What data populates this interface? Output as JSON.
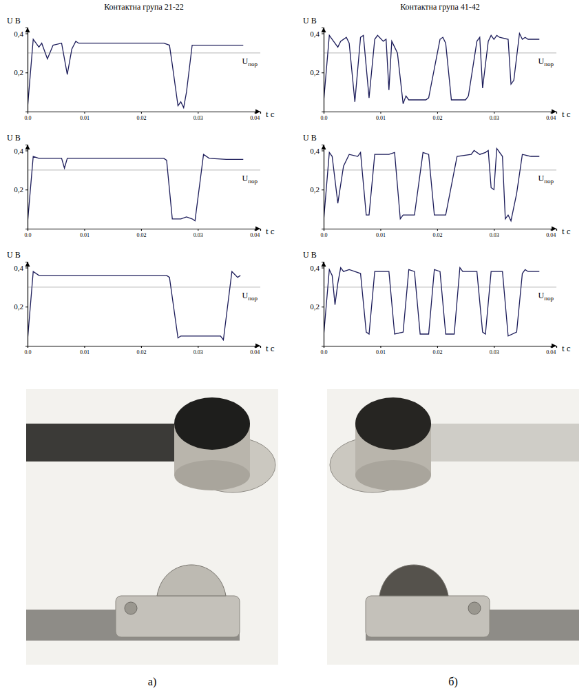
{
  "chart_data": [
    {
      "type": "line",
      "title": "Контактна група 21-22",
      "y_label": "U B",
      "x_label": "t c",
      "color": "#1c1c5a",
      "xlim": [
        0,
        0.041
      ],
      "ylim": [
        0,
        0.43
      ],
      "xticks": [
        {
          "value": 0,
          "label": "0.0"
        },
        0.01,
        0.02,
        0.03,
        0.04
      ],
      "yticks": [
        {
          "value": 0.2,
          "label": "0,2"
        },
        {
          "value": 0.4,
          "label": "0,4"
        }
      ],
      "reference_line": {
        "y": 0.3,
        "label": "Uпор"
      },
      "x": [
        0,
        0.001,
        0.0015,
        0.002,
        0.0025,
        0.0035,
        0.0045,
        0.006,
        0.007,
        0.0078,
        0.0085,
        0.009,
        0.012,
        0.015,
        0.018,
        0.021,
        0.024,
        0.025,
        0.0255,
        0.0265,
        0.027,
        0.0275,
        0.028,
        0.029,
        0.03,
        0.034,
        0.038
      ],
      "values": [
        0.02,
        0.37,
        0.35,
        0.33,
        0.35,
        0.27,
        0.34,
        0.35,
        0.19,
        0.32,
        0.36,
        0.35,
        0.35,
        0.35,
        0.35,
        0.35,
        0.35,
        0.34,
        0.24,
        0.03,
        0.05,
        0.02,
        0.1,
        0.34,
        0.34,
        0.34,
        0.34
      ]
    },
    {
      "type": "line",
      "y_label": "U B",
      "x_label": "t c",
      "color": "#1c1c5a",
      "xlim": [
        0,
        0.041
      ],
      "ylim": [
        0,
        0.43
      ],
      "xticks": [
        {
          "value": 0,
          "label": "0.0"
        },
        0.01,
        0.02,
        0.03,
        0.04
      ],
      "yticks": [
        {
          "value": 0.2,
          "label": "0,2"
        },
        {
          "value": 0.4,
          "label": "0,4"
        }
      ],
      "reference_line": {
        "y": 0.3,
        "label": "Uпор"
      },
      "x": [
        0,
        0.001,
        0.002,
        0.004,
        0.006,
        0.0065,
        0.007,
        0.01,
        0.015,
        0.02,
        0.024,
        0.0245,
        0.0255,
        0.027,
        0.028,
        0.029,
        0.0295,
        0.031,
        0.032,
        0.035,
        0.038
      ],
      "values": [
        0.03,
        0.37,
        0.36,
        0.36,
        0.36,
        0.31,
        0.36,
        0.36,
        0.36,
        0.36,
        0.36,
        0.35,
        0.05,
        0.05,
        0.06,
        0.05,
        0.04,
        0.38,
        0.36,
        0.355,
        0.355
      ]
    },
    {
      "type": "line",
      "y_label": "U B",
      "x_label": "t c",
      "color": "#1c1c5a",
      "xlim": [
        0,
        0.041
      ],
      "ylim": [
        0,
        0.43
      ],
      "xticks": [
        {
          "value": 0,
          "label": "0.0"
        },
        0.01,
        0.02,
        0.03,
        0.04
      ],
      "yticks": [
        {
          "value": 0.2,
          "label": "0,2"
        },
        {
          "value": 0.4,
          "label": "0,4"
        }
      ],
      "reference_line": {
        "y": 0.3,
        "label": "Uпор"
      },
      "x": [
        0,
        0.001,
        0.002,
        0.005,
        0.01,
        0.015,
        0.02,
        0.0245,
        0.025,
        0.0265,
        0.027,
        0.03,
        0.034,
        0.0345,
        0.036,
        0.037,
        0.0375
      ],
      "values": [
        0.03,
        0.38,
        0.36,
        0.36,
        0.36,
        0.36,
        0.36,
        0.36,
        0.35,
        0.04,
        0.05,
        0.05,
        0.05,
        0.03,
        0.38,
        0.35,
        0.36
      ]
    },
    {
      "type": "line",
      "title": "Контактна група 41-42",
      "y_label": "U B",
      "x_label": "t c",
      "color": "#1c1c5a",
      "xlim": [
        0,
        0.041
      ],
      "ylim": [
        0,
        0.43
      ],
      "xticks": [
        {
          "value": 0,
          "label": "0.0"
        },
        0.01,
        0.02,
        0.03,
        0.04
      ],
      "yticks": [
        {
          "value": 0.2,
          "label": "0,2"
        },
        {
          "value": 0.4,
          "label": "0,4"
        }
      ],
      "reference_line": {
        "y": 0.3,
        "label": "Uпор"
      },
      "x": [
        0,
        0.001,
        0.0015,
        0.0025,
        0.003,
        0.004,
        0.0045,
        0.0055,
        0.0065,
        0.007,
        0.008,
        0.009,
        0.0095,
        0.0105,
        0.011,
        0.0115,
        0.012,
        0.0125,
        0.013,
        0.014,
        0.0145,
        0.015,
        0.018,
        0.0185,
        0.0205,
        0.021,
        0.0215,
        0.0225,
        0.025,
        0.0255,
        0.027,
        0.0275,
        0.028,
        0.029,
        0.0295,
        0.03,
        0.0305,
        0.031,
        0.0325,
        0.033,
        0.0335,
        0.0345,
        0.035,
        0.0355,
        0.036,
        0.038
      ],
      "values": [
        0.05,
        0.39,
        0.37,
        0.33,
        0.36,
        0.38,
        0.35,
        0.05,
        0.38,
        0.39,
        0.07,
        0.37,
        0.39,
        0.36,
        0.37,
        0.11,
        0.36,
        0.33,
        0.3,
        0.04,
        0.08,
        0.06,
        0.06,
        0.07,
        0.37,
        0.38,
        0.35,
        0.06,
        0.06,
        0.08,
        0.36,
        0.38,
        0.12,
        0.36,
        0.39,
        0.37,
        0.39,
        0.38,
        0.37,
        0.14,
        0.16,
        0.4,
        0.37,
        0.38,
        0.37,
        0.37
      ]
    },
    {
      "type": "line",
      "y_label": "U B",
      "x_label": "t c",
      "color": "#1c1c5a",
      "xlim": [
        0,
        0.041
      ],
      "ylim": [
        0,
        0.43
      ],
      "xticks": [
        {
          "value": 0,
          "label": "0.0"
        },
        0.01,
        0.02,
        0.03,
        0.04
      ],
      "yticks": [
        {
          "value": 0.2,
          "label": "0,2"
        },
        {
          "value": 0.4,
          "label": "0,4"
        }
      ],
      "reference_line": {
        "y": 0.3,
        "label": "Uпор"
      },
      "x": [
        0,
        0.001,
        0.0015,
        0.0025,
        0.0035,
        0.0045,
        0.006,
        0.0065,
        0.0075,
        0.008,
        0.009,
        0.0115,
        0.0125,
        0.0135,
        0.014,
        0.016,
        0.0175,
        0.0185,
        0.0195,
        0.0215,
        0.0235,
        0.026,
        0.0265,
        0.0275,
        0.0285,
        0.029,
        0.0295,
        0.03,
        0.0305,
        0.0315,
        0.032,
        0.0325,
        0.033,
        0.034,
        0.035,
        0.0365,
        0.038
      ],
      "values": [
        0.04,
        0.39,
        0.37,
        0.13,
        0.32,
        0.38,
        0.37,
        0.39,
        0.07,
        0.07,
        0.38,
        0.38,
        0.39,
        0.05,
        0.07,
        0.07,
        0.39,
        0.38,
        0.07,
        0.07,
        0.37,
        0.38,
        0.4,
        0.38,
        0.39,
        0.4,
        0.21,
        0.2,
        0.41,
        0.37,
        0.05,
        0.07,
        0.04,
        0.18,
        0.38,
        0.37,
        0.37
      ]
    },
    {
      "type": "line",
      "y_label": "U B",
      "x_label": "t c",
      "color": "#1c1c5a",
      "xlim": [
        0,
        0.041
      ],
      "ylim": [
        0,
        0.43
      ],
      "xticks": [
        {
          "value": 0,
          "label": "0.0"
        },
        0.01,
        0.02,
        0.03,
        0.04
      ],
      "yticks": [
        {
          "value": 0.2,
          "label": "0,2"
        },
        {
          "value": 0.4,
          "label": "0,4"
        }
      ],
      "reference_line": {
        "y": 0.3,
        "label": "Uпор"
      },
      "x": [
        0,
        0.001,
        0.0015,
        0.002,
        0.0025,
        0.003,
        0.0035,
        0.0045,
        0.0065,
        0.0075,
        0.008,
        0.009,
        0.0115,
        0.0125,
        0.014,
        0.015,
        0.016,
        0.017,
        0.0185,
        0.0195,
        0.0205,
        0.0215,
        0.023,
        0.024,
        0.0245,
        0.027,
        0.028,
        0.0285,
        0.0295,
        0.0315,
        0.0325,
        0.034,
        0.035,
        0.0355,
        0.036,
        0.038
      ],
      "values": [
        0.05,
        0.39,
        0.36,
        0.21,
        0.32,
        0.4,
        0.38,
        0.39,
        0.37,
        0.07,
        0.06,
        0.38,
        0.38,
        0.06,
        0.07,
        0.39,
        0.38,
        0.06,
        0.06,
        0.39,
        0.38,
        0.06,
        0.06,
        0.4,
        0.38,
        0.38,
        0.07,
        0.06,
        0.38,
        0.38,
        0.05,
        0.07,
        0.37,
        0.39,
        0.38,
        0.38
      ]
    }
  ],
  "figure": {
    "panel_labels": [
      "а)",
      "б)"
    ]
  }
}
